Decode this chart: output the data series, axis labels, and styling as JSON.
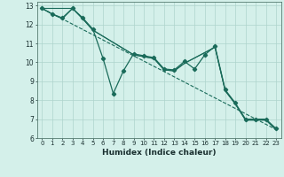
{
  "xlabel": "Humidex (Indice chaleur)",
  "ylabel": "",
  "bg_color": "#d4f0ea",
  "grid_color": "#aed4cc",
  "line_color": "#1a6b5a",
  "xlim": [
    -0.5,
    23.5
  ],
  "ylim": [
    6,
    13.2
  ],
  "xticks": [
    0,
    1,
    2,
    3,
    4,
    5,
    6,
    7,
    8,
    9,
    10,
    11,
    12,
    13,
    14,
    15,
    16,
    17,
    18,
    19,
    20,
    21,
    22,
    23
  ],
  "yticks": [
    6,
    7,
    8,
    9,
    10,
    11,
    12,
    13
  ],
  "series1_x": [
    0,
    1,
    2,
    3,
    4,
    5,
    6,
    7,
    8,
    9,
    10,
    11,
    12,
    13,
    14,
    15,
    16,
    17,
    18,
    19,
    20,
    21,
    22,
    23
  ],
  "series1_y": [
    12.85,
    12.55,
    12.35,
    12.85,
    12.35,
    11.75,
    10.2,
    8.35,
    9.55,
    10.45,
    10.35,
    10.25,
    9.65,
    9.6,
    10.05,
    9.65,
    10.4,
    10.85,
    8.55,
    7.85,
    7.0,
    7.0,
    7.0,
    6.5
  ],
  "series2_x": [
    0,
    1,
    2,
    3,
    4,
    5,
    9,
    10,
    11,
    12,
    13,
    14,
    17,
    18,
    19,
    20,
    21,
    22,
    23
  ],
  "series2_y": [
    12.85,
    12.55,
    12.3,
    12.85,
    12.3,
    11.7,
    10.4,
    10.3,
    10.2,
    9.6,
    9.55,
    9.95,
    10.8,
    8.5,
    7.8,
    6.95,
    6.95,
    6.95,
    6.45
  ],
  "series3_x": [
    0,
    3,
    4,
    5,
    9,
    10,
    11,
    12,
    13,
    14,
    17,
    18,
    19,
    20,
    21,
    22,
    23
  ],
  "series3_y": [
    12.85,
    12.85,
    12.3,
    11.7,
    10.4,
    10.3,
    10.2,
    9.6,
    9.55,
    9.95,
    10.8,
    8.5,
    7.8,
    6.95,
    6.95,
    6.95,
    6.45
  ],
  "series4_x": [
    0,
    23
  ],
  "series4_y": [
    12.85,
    6.45
  ]
}
